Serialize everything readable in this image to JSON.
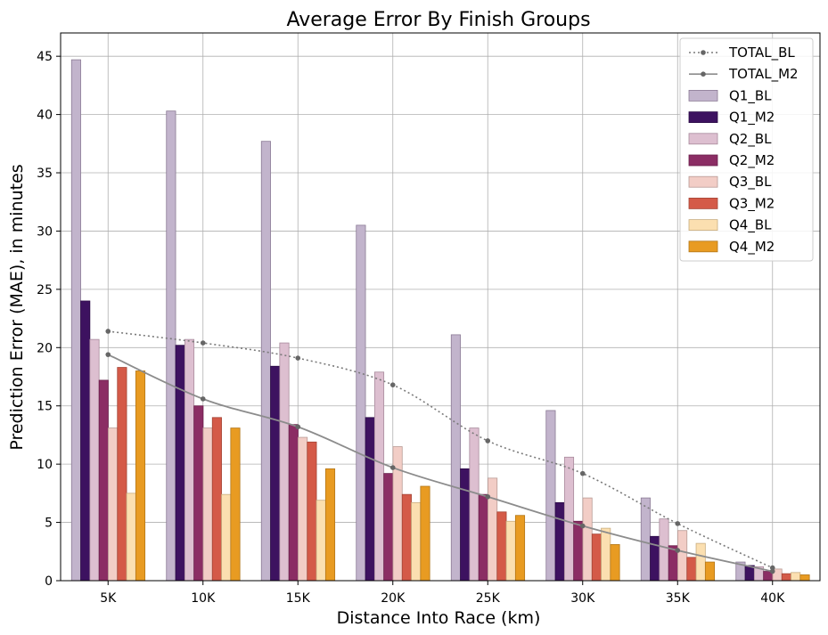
{
  "chart_data": {
    "type": "bar",
    "title": "Average Error By Finish Groups",
    "xlabel": "Distance Into Race (km)",
    "ylabel": "Prediction Error (MAE), in minutes",
    "categories": [
      "5K",
      "10K",
      "15K",
      "20K",
      "25K",
      "30K",
      "35K",
      "40K"
    ],
    "ylim": [
      0,
      47
    ],
    "yticks": [
      0,
      5,
      10,
      15,
      20,
      25,
      30,
      35,
      40,
      45
    ],
    "grid": true,
    "legend_position": "top-right",
    "series": [
      {
        "name": "Q1_BL",
        "kind": "bar",
        "color": "#c2b4cc",
        "edge": "#8a7a94",
        "values": [
          44.7,
          40.3,
          37.7,
          30.5,
          21.1,
          14.6,
          7.1,
          1.6
        ]
      },
      {
        "name": "Q1_M2",
        "kind": "bar",
        "color": "#3d1260",
        "edge": "#2a0a45",
        "values": [
          24.0,
          20.2,
          18.4,
          14.0,
          9.6,
          6.7,
          3.8,
          1.3
        ]
      },
      {
        "name": "Q2_BL",
        "kind": "bar",
        "color": "#ddbfd0",
        "edge": "#a88a9c",
        "values": [
          20.7,
          20.7,
          20.4,
          17.9,
          13.1,
          10.6,
          5.3,
          1.2
        ]
      },
      {
        "name": "Q2_M2",
        "kind": "bar",
        "color": "#8b2d64",
        "edge": "#6a1f4b",
        "values": [
          17.2,
          15.0,
          13.4,
          9.2,
          7.4,
          5.1,
          3.0,
          0.8
        ]
      },
      {
        "name": "Q3_BL",
        "kind": "bar",
        "color": "#f2cdc6",
        "edge": "#b89a94",
        "values": [
          13.1,
          13.1,
          12.3,
          11.5,
          8.8,
          7.1,
          4.3,
          1.0
        ]
      },
      {
        "name": "Q3_M2",
        "kind": "bar",
        "color": "#d45a48",
        "edge": "#a44536",
        "values": [
          18.3,
          14.0,
          11.9,
          7.4,
          5.9,
          4.0,
          2.0,
          0.6
        ]
      },
      {
        "name": "Q4_BL",
        "kind": "bar",
        "color": "#fbdfb0",
        "edge": "#c8ad80",
        "values": [
          7.5,
          7.4,
          6.9,
          6.7,
          5.1,
          4.5,
          3.2,
          0.7
        ]
      },
      {
        "name": "Q4_M2",
        "kind": "bar",
        "color": "#e89b22",
        "edge": "#b27618",
        "values": [
          18.0,
          13.1,
          9.6,
          8.1,
          5.6,
          3.1,
          1.6,
          0.5
        ]
      },
      {
        "name": "TOTAL_BL",
        "kind": "line",
        "style": "dotted",
        "color": "#7a7a7a",
        "values": [
          21.4,
          20.4,
          19.1,
          16.8,
          12.0,
          9.2,
          4.9,
          1.1
        ]
      },
      {
        "name": "TOTAL_M2",
        "kind": "line",
        "style": "solid",
        "color": "#8c8c8c",
        "values": [
          19.4,
          15.6,
          13.2,
          9.7,
          7.2,
          4.7,
          2.6,
          0.8
        ]
      }
    ]
  }
}
